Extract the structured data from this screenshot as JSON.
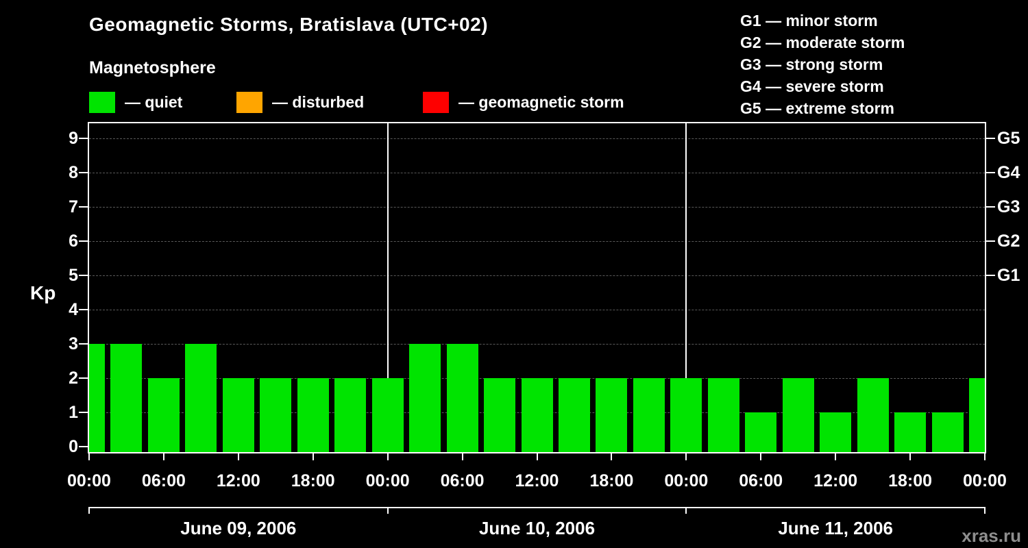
{
  "header": {
    "title": "Geomagnetic Storms, Bratislava (UTC+02)",
    "subtitle": "Magnetosphere"
  },
  "legend": {
    "items": [
      {
        "label": "— quiet",
        "color": "#00e400"
      },
      {
        "label": "— disturbed",
        "color": "#ffa500"
      },
      {
        "label": "— geomagnetic storm",
        "color": "#fe0000"
      }
    ]
  },
  "storm_scale": {
    "items": [
      "G1 — minor storm",
      "G2 — moderate storm",
      "G3 — strong storm",
      "G4 — severe storm",
      "G5 — extreme storm"
    ]
  },
  "watermark": "xras.ru",
  "chart_data": {
    "type": "bar",
    "title": "Geomagnetic Storms, Bratislava (UTC+02)",
    "ylabel": "Kp",
    "ylim": [
      0,
      9.6
    ],
    "y_ticks": [
      0,
      1,
      2,
      3,
      4,
      5,
      6,
      7,
      8,
      9
    ],
    "grid": "dashed horizontal gridlines at each Kp level",
    "legend_position": "top-left",
    "right_axis": [
      {
        "label": "G5",
        "kp": 9
      },
      {
        "label": "G4",
        "kp": 8
      },
      {
        "label": "G3",
        "kp": 7
      },
      {
        "label": "G2",
        "kp": 6
      },
      {
        "label": "G1",
        "kp": 5
      }
    ],
    "x_start": "June 09, 2006 00:00",
    "x_total_hours": 72,
    "bar_interval_hours": 3,
    "x_ticks": [
      {
        "hour": 0,
        "label": "00:00"
      },
      {
        "hour": 6,
        "label": "06:00"
      },
      {
        "hour": 12,
        "label": "12:00"
      },
      {
        "hour": 18,
        "label": "18:00"
      },
      {
        "hour": 24,
        "label": "00:00"
      },
      {
        "hour": 30,
        "label": "06:00"
      },
      {
        "hour": 36,
        "label": "12:00"
      },
      {
        "hour": 42,
        "label": "18:00"
      },
      {
        "hour": 48,
        "label": "00:00"
      },
      {
        "hour": 54,
        "label": "06:00"
      },
      {
        "hour": 60,
        "label": "12:00"
      },
      {
        "hour": 66,
        "label": "18:00"
      },
      {
        "hour": 72,
        "label": "00:00"
      }
    ],
    "day_separators_hours": [
      24,
      48
    ],
    "day_boundaries_hours": [
      0,
      24,
      48,
      72
    ],
    "days": [
      {
        "label": "June 09, 2006",
        "center_hour": 12
      },
      {
        "label": "June 10, 2006",
        "center_hour": 36
      },
      {
        "label": "June 11, 2006",
        "center_hour": 60
      }
    ],
    "series": [
      {
        "name": "Kp index (3-hour intervals)",
        "points": [
          {
            "hour": 0,
            "time": "June 09, 2006 00:00",
            "kp": 3
          },
          {
            "hour": 3,
            "time": "June 09, 2006 03:00",
            "kp": 3
          },
          {
            "hour": 6,
            "time": "June 09, 2006 06:00",
            "kp": 2
          },
          {
            "hour": 9,
            "time": "June 09, 2006 09:00",
            "kp": 3
          },
          {
            "hour": 12,
            "time": "June 09, 2006 12:00",
            "kp": 2
          },
          {
            "hour": 15,
            "time": "June 09, 2006 15:00",
            "kp": 2
          },
          {
            "hour": 18,
            "time": "June 09, 2006 18:00",
            "kp": 2
          },
          {
            "hour": 21,
            "time": "June 09, 2006 21:00",
            "kp": 2
          },
          {
            "hour": 24,
            "time": "June 10, 2006 00:00",
            "kp": 2
          },
          {
            "hour": 27,
            "time": "June 10, 2006 03:00",
            "kp": 3
          },
          {
            "hour": 30,
            "time": "June 10, 2006 06:00",
            "kp": 3
          },
          {
            "hour": 33,
            "time": "June 10, 2006 09:00",
            "kp": 2
          },
          {
            "hour": 36,
            "time": "June 10, 2006 12:00",
            "kp": 2
          },
          {
            "hour": 39,
            "time": "June 10, 2006 15:00",
            "kp": 2
          },
          {
            "hour": 42,
            "time": "June 10, 2006 18:00",
            "kp": 2
          },
          {
            "hour": 45,
            "time": "June 10, 2006 21:00",
            "kp": 2
          },
          {
            "hour": 48,
            "time": "June 11, 2006 00:00",
            "kp": 2
          },
          {
            "hour": 51,
            "time": "June 11, 2006 03:00",
            "kp": 2
          },
          {
            "hour": 54,
            "time": "June 11, 2006 06:00",
            "kp": 1
          },
          {
            "hour": 57,
            "time": "June 11, 2006 09:00",
            "kp": 2
          },
          {
            "hour": 60,
            "time": "June 11, 2006 12:00",
            "kp": 1
          },
          {
            "hour": 63,
            "time": "June 11, 2006 15:00",
            "kp": 2
          },
          {
            "hour": 66,
            "time": "June 11, 2006 18:00",
            "kp": 1
          },
          {
            "hour": 69,
            "time": "June 11, 2006 21:00",
            "kp": 1
          },
          {
            "hour": 72,
            "time": "June 12, 2006 00:00",
            "kp": 2
          }
        ]
      }
    ]
  }
}
